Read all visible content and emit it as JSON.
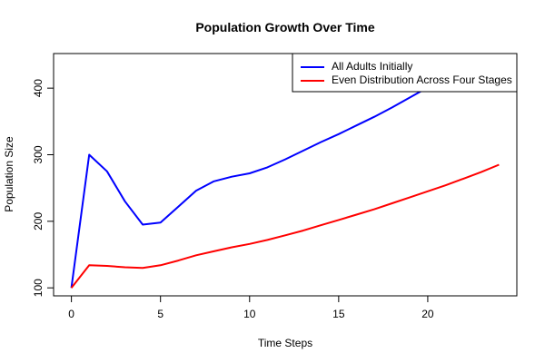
{
  "chart_data": {
    "type": "line",
    "title": "Population Growth Over Time",
    "xlabel": "Time Steps",
    "ylabel": "Population Size",
    "xlim": [
      -1,
      25
    ],
    "ylim": [
      88,
      452
    ],
    "x_ticks": [
      0,
      5,
      10,
      15,
      20
    ],
    "y_ticks": [
      100,
      200,
      300,
      400
    ],
    "legend_position": "top-right",
    "series": [
      {
        "name": "All Adults Initially",
        "color": "#0000ff",
        "x": [
          0,
          1,
          2,
          3,
          4,
          5,
          6,
          7,
          8,
          9,
          10,
          11,
          12,
          13,
          14,
          15,
          16,
          17,
          18,
          19,
          20,
          21,
          22,
          23,
          24
        ],
        "values": [
          100,
          300,
          275,
          230,
          195,
          198,
          222,
          246,
          260,
          267,
          272,
          281,
          293,
          306,
          319,
          331,
          344,
          357,
          371,
          386,
          401,
          417,
          433,
          449,
          466
        ]
      },
      {
        "name": "Even Distribution Across Four Stages",
        "color": "#ff0000",
        "x": [
          0,
          1,
          2,
          3,
          4,
          5,
          6,
          7,
          8,
          9,
          10,
          11,
          12,
          13,
          14,
          15,
          16,
          17,
          18,
          19,
          20,
          21,
          22,
          23,
          24
        ],
        "values": [
          100,
          134,
          133,
          131,
          130,
          134,
          141,
          149,
          155,
          161,
          166,
          172,
          179,
          186,
          194,
          202,
          210,
          218,
          227,
          236,
          245,
          254,
          264,
          274,
          285
        ]
      }
    ]
  }
}
